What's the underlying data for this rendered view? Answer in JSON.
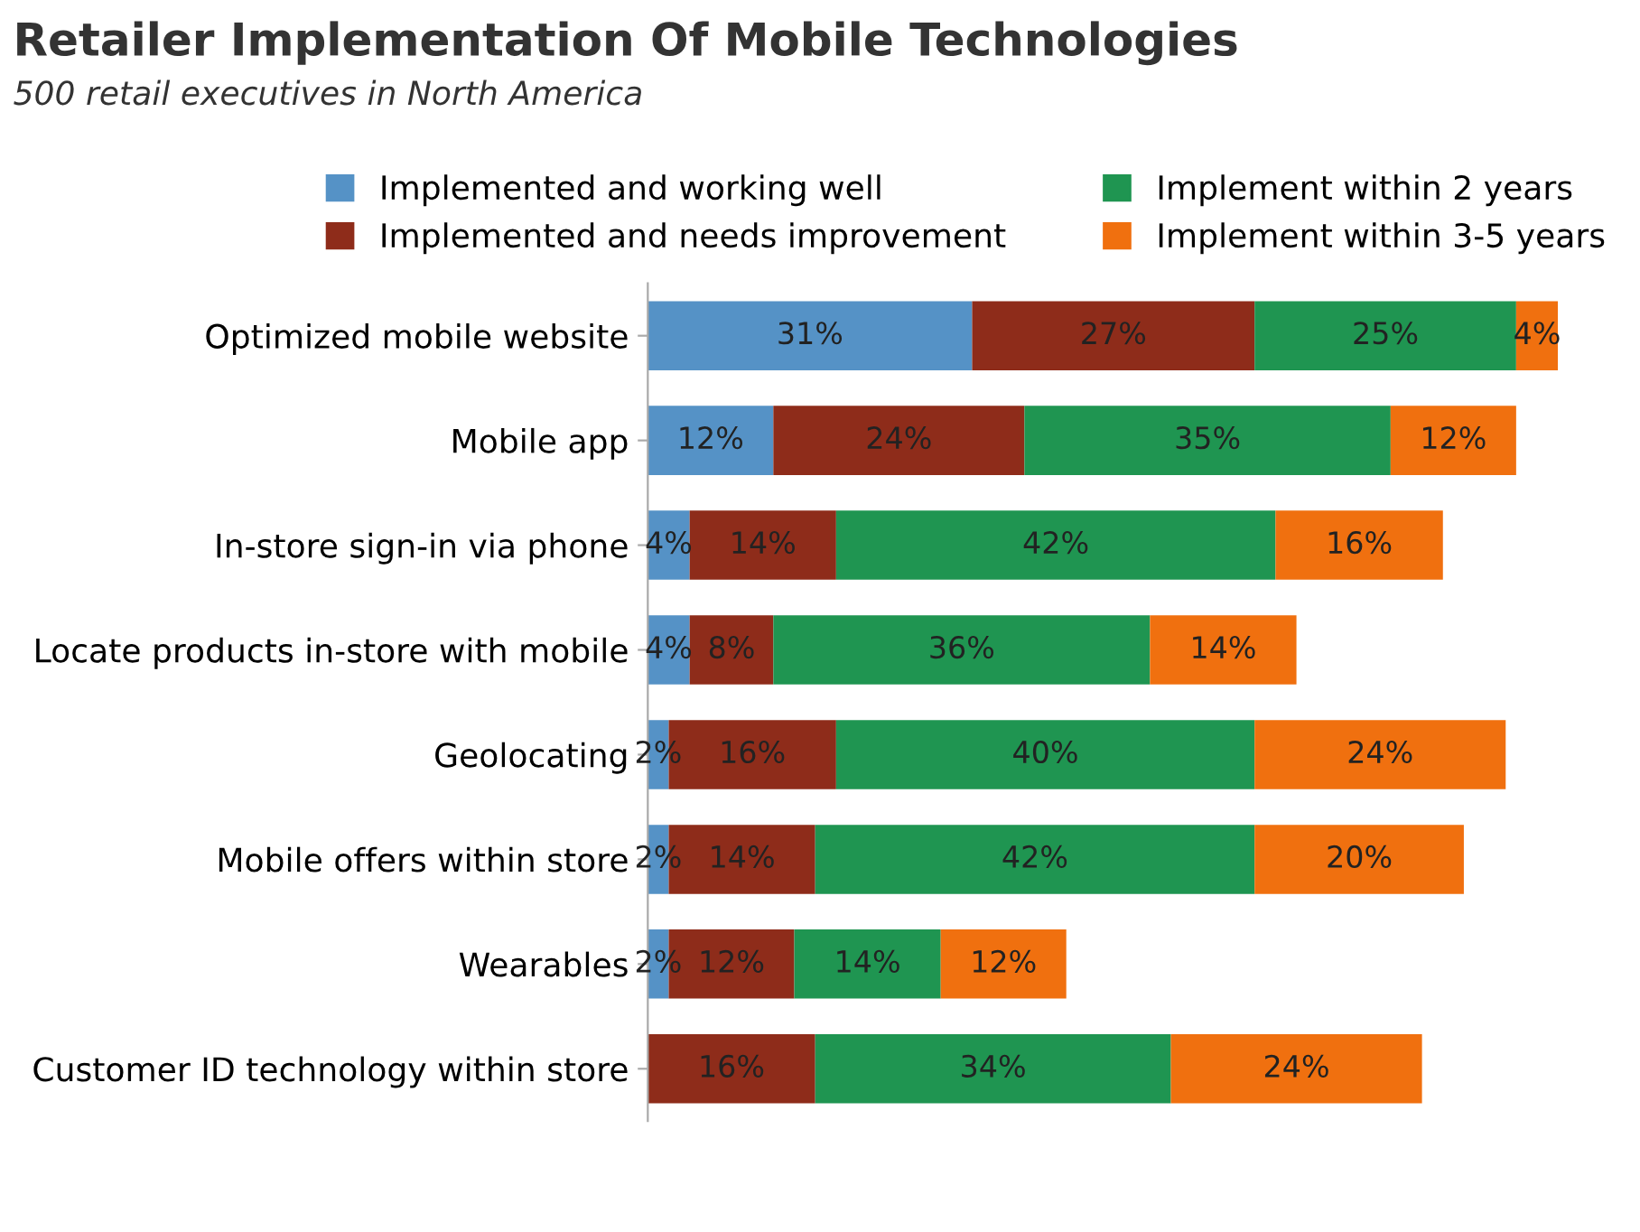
{
  "chart_data": {
    "type": "bar",
    "orientation": "horizontal",
    "stacked": true,
    "title": "Retailer Implementation Of Mobile Technologies",
    "subtitle": "500 retail executives in North America",
    "categories": [
      "Optimized mobile website",
      "Mobile app",
      "In-store sign-in via phone",
      "Locate products in-store with mobile",
      "Geolocating",
      "Mobile offers within store",
      "Wearables",
      "Customer ID technology within store"
    ],
    "series": [
      {
        "name": "Implemented and working well",
        "color": "#5592c6",
        "values": [
          31,
          12,
          4,
          4,
          2,
          2,
          2,
          null
        ],
        "value_labels": [
          "31%",
          "12%",
          "4%",
          "4%",
          "2%",
          "2%",
          "2%",
          null
        ]
      },
      {
        "name": "Implemented and needs improvement",
        "color": "#8e2c1a",
        "values": [
          27,
          24,
          14,
          8,
          16,
          14,
          12,
          16
        ],
        "value_labels": [
          "27%",
          "24%",
          "14%",
          "8%",
          "16%",
          "14%",
          "12%",
          "16%"
        ]
      },
      {
        "name": "Implement within 2 years",
        "color": "#1f9551",
        "values": [
          25,
          35,
          42,
          36,
          40,
          42,
          14,
          34
        ],
        "value_labels": [
          "25%",
          "35%",
          "42%",
          "36%",
          "40%",
          "42%",
          "14%",
          "34%"
        ]
      },
      {
        "name": "Implement within 3-5 years",
        "color": "#f0700f",
        "values": [
          4,
          12,
          16,
          14,
          24,
          20,
          12,
          24
        ],
        "value_labels": [
          "4%",
          "12%",
          "16%",
          "14%",
          "24%",
          "20%",
          "12%",
          "24%"
        ]
      }
    ],
    "legend": "top",
    "grid": false
  }
}
